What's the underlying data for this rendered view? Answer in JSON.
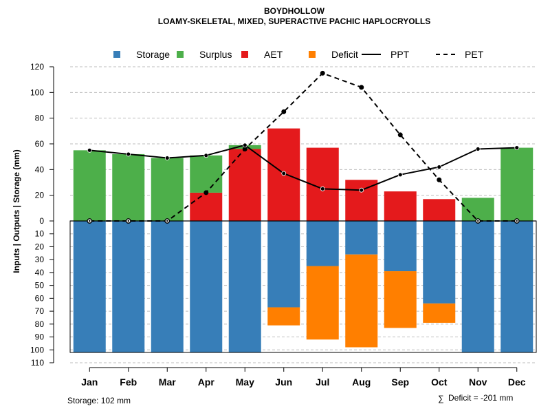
{
  "chart_data": {
    "type": "bar",
    "title": "BOYDHOLLOW",
    "subtitle": "LOAMY-SKELETAL, MIXED, SUPERACTIVE PACHIC HAPLOCRYOLLS",
    "ylabel": "Inputs | Outputs | Storage    (mm)",
    "xlabel": "",
    "categories": [
      "Jan",
      "Feb",
      "Mar",
      "Apr",
      "May",
      "Jun",
      "Jul",
      "Aug",
      "Sep",
      "Oct",
      "Nov",
      "Dec"
    ],
    "ylim_top": [
      0,
      120
    ],
    "ylim_bottom": [
      0,
      110
    ],
    "yticks_top": [
      "120",
      "100",
      "80",
      "60",
      "40",
      "20",
      "0"
    ],
    "yticks_bottom": [
      "10",
      "20",
      "30",
      "40",
      "50",
      "60",
      "70",
      "80",
      "90",
      "100",
      "110"
    ],
    "grid": true,
    "legend_position": "top",
    "legend": [
      {
        "label": "Storage",
        "kind": "square",
        "color": "#377EB8"
      },
      {
        "label": "Surplus",
        "kind": "square",
        "color": "#4DAF4A"
      },
      {
        "label": "AET",
        "kind": "square",
        "color": "#E41A1C"
      },
      {
        "label": "Deficit",
        "kind": "square",
        "color": "#FF7F00"
      },
      {
        "label": "PPT",
        "kind": "solid-line",
        "color": "#000000"
      },
      {
        "label": "PET",
        "kind": "dashed-line",
        "color": "#000000"
      }
    ],
    "series": [
      {
        "name": "Surplus",
        "values": [
          55,
          52,
          49,
          29,
          3,
          0,
          0,
          0,
          0,
          0,
          18,
          57
        ]
      },
      {
        "name": "AET",
        "values": [
          0,
          0,
          0,
          22,
          56,
          72,
          57,
          32,
          23,
          17,
          0,
          0
        ]
      },
      {
        "name": "Storage",
        "values": [
          102,
          102,
          102,
          102,
          102,
          67,
          35,
          26,
          39,
          64,
          102,
          102
        ]
      },
      {
        "name": "Deficit",
        "values": [
          0,
          0,
          0,
          0,
          0,
          14,
          57,
          72,
          44,
          15,
          0,
          0
        ]
      },
      {
        "name": "PPT",
        "values": [
          55,
          52,
          49,
          51,
          59,
          37,
          25,
          24,
          36,
          42,
          56,
          57
        ]
      },
      {
        "name": "PET",
        "values": [
          0,
          0,
          0,
          22,
          56,
          85,
          115,
          104,
          67,
          32,
          0,
          0
        ]
      }
    ],
    "storage_line": 102,
    "colors": {
      "storage": "#377EB8",
      "surplus": "#4DAF4A",
      "aet": "#E41A1C",
      "deficit": "#FF7F00",
      "grid": "#bdbdbd",
      "axis": "#000000"
    }
  },
  "footer": {
    "storage_label": "Storage: 102 mm",
    "deficit_symbol": "∑",
    "deficit_label": "Deficit = -201 mm"
  }
}
